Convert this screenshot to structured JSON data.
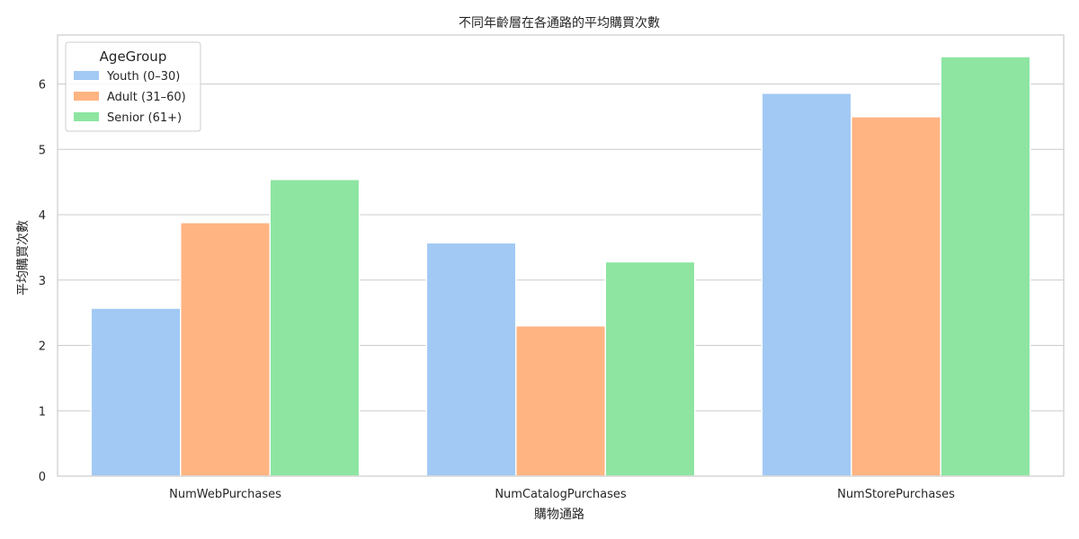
{
  "chart_data": {
    "type": "bar",
    "title": "不同年齡層在各通路的平均購買次數",
    "xlabel": "購物通路",
    "ylabel": "平均購買次數",
    "categories": [
      "NumWebPurchases",
      "NumCatalogPurchases",
      "NumStorePurchases"
    ],
    "series": [
      {
        "name": "Youth (0–30)",
        "color": "#a1c9f4",
        "values": [
          2.57,
          3.57,
          5.86
        ]
      },
      {
        "name": "Adult (31–60)",
        "color": "#ffb482",
        "values": [
          3.88,
          2.3,
          5.5
        ]
      },
      {
        "name": "Senior (61+)",
        "color": "#8de5a1",
        "values": [
          4.54,
          3.28,
          6.42
        ]
      }
    ],
    "ylim": [
      0,
      6.75
    ],
    "yticks": [
      "0",
      "1",
      "2",
      "3",
      "4",
      "5",
      "6"
    ],
    "grid": true,
    "legend": {
      "title": "AgeGroup",
      "position": "top-left"
    }
  }
}
